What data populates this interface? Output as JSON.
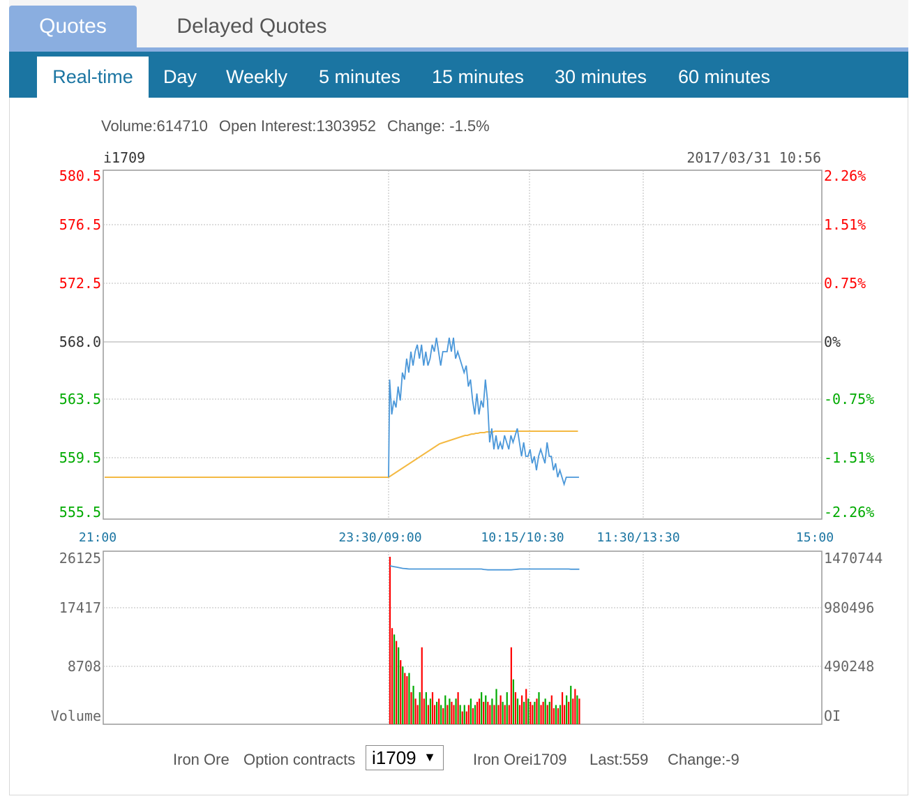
{
  "top_tabs": [
    {
      "label": "Quotes",
      "active": true
    },
    {
      "label": "Delayed Quotes",
      "active": false
    }
  ],
  "sub_tabs": [
    {
      "label": "Real-time",
      "active": true
    },
    {
      "label": "Day",
      "active": false
    },
    {
      "label": "Weekly",
      "active": false
    },
    {
      "label": "5 minutes",
      "active": false
    },
    {
      "label": "15 minutes",
      "active": false
    },
    {
      "label": "30 minutes",
      "active": false
    },
    {
      "label": "60 minutes",
      "active": false
    }
  ],
  "stats": {
    "volume": "Volume:614710",
    "open_interest": "Open Interest:1303952",
    "change": "Change: -1.5%"
  },
  "colors": {
    "up": "#ff0000",
    "down": "#00aa00",
    "neutral": "#333333",
    "price_line": "#4a97d9",
    "avg_line": "#f4b942",
    "time_label": "#1b75a2"
  },
  "chart_data": [
    {
      "type": "line",
      "symbol": "i1709",
      "timestamp": "2017/03/31 10:56",
      "y_left_ticks": [
        "580.5",
        "576.5",
        "572.5",
        "568.0",
        "563.5",
        "559.5",
        "555.5"
      ],
      "y_right_ticks": [
        "2.26%",
        "1.51%",
        "0.75%",
        "0%",
        "-0.75%",
        "-1.51%",
        "-2.26%"
      ],
      "ylim": [
        555.5,
        580.5
      ],
      "x_ticks": [
        "21:00",
        "23:30/09:00",
        "10:15/10:30",
        "11:30/13:30",
        "15:00"
      ],
      "series": [
        {
          "values": [
            565.5,
            563,
            564,
            563.5,
            565,
            564,
            566,
            565.5,
            567,
            566,
            567.5,
            566.5,
            567.5,
            568,
            567,
            568,
            566.5,
            567.5,
            566.5,
            567,
            568,
            567.5,
            568.5,
            567.5,
            566.5,
            567.5,
            567.5,
            567.5,
            568.5,
            567.5,
            568.5,
            567,
            567.5,
            567,
            566.5,
            566,
            566.5,
            565,
            565.5,
            564,
            563,
            564.5,
            563,
            564,
            563.5,
            565.5,
            564,
            561,
            562,
            560.5,
            561.5,
            560.5,
            561,
            560.5,
            561.5,
            561,
            560.5,
            561.5,
            561,
            561.5,
            562,
            561,
            560,
            561,
            560,
            560,
            560.5,
            559.5,
            560,
            559,
            560,
            560.5,
            560,
            559.5,
            561,
            560,
            560,
            559,
            559.5,
            558.5,
            559,
            558.5,
            558,
            558.5,
            558.5,
            558.5,
            558.5,
            558.5,
            558.5,
            558.5
          ]
        },
        {
          "values": [
            558.5,
            558.6,
            558.7,
            558.8,
            558.9,
            559,
            559.1,
            559.2,
            559.3,
            559.4,
            559.5,
            559.6,
            559.7,
            559.8,
            559.9,
            560,
            560.1,
            560.2,
            560.3,
            560.4,
            560.5,
            560.6,
            560.7,
            560.8,
            560.9,
            560.95,
            561,
            561.05,
            561.1,
            561.15,
            561.2,
            561.25,
            561.3,
            561.35,
            561.4,
            561.45,
            561.5,
            561.5,
            561.55,
            561.6,
            561.6,
            561.65,
            561.65,
            561.7,
            561.7,
            561.7,
            561.75,
            561.75,
            561.75,
            561.75,
            561.8,
            561.8,
            561.8,
            561.8,
            561.8,
            561.8,
            561.8,
            561.8,
            561.8,
            561.8,
            561.8,
            561.8,
            561.8,
            561.8,
            561.8,
            561.8,
            561.8,
            561.8,
            561.8,
            561.8,
            561.8,
            561.8,
            561.8,
            561.8,
            561.8,
            561.8,
            561.8,
            561.8,
            561.8,
            561.8,
            561.8,
            561.8,
            561.8,
            561.8,
            561.8,
            561.8,
            561.8,
            561.8,
            561.8,
            561.8
          ]
        }
      ]
    },
    {
      "type": "bar",
      "y_left_ticks": [
        "26125",
        "17417",
        "8708",
        "Volume"
      ],
      "y_right_ticks": [
        "1470744",
        "980496",
        "490248",
        "OI"
      ],
      "ylim": [
        0,
        26125
      ],
      "oi_ylim": [
        0,
        1470744
      ],
      "volume": [
        26125,
        15000,
        14000,
        13000,
        12000,
        10000,
        9000,
        8000,
        7500,
        8000,
        5000,
        6000,
        4000,
        3000,
        5000,
        12000,
        4000,
        5000,
        3000,
        4000,
        5000,
        3000,
        3500,
        4000,
        3000,
        2500,
        4500,
        3000,
        4000,
        3500,
        3000,
        4000,
        5000,
        3000,
        2000,
        3000,
        2000,
        3000,
        4000,
        2500,
        3000,
        3500,
        4000,
        5000,
        3500,
        4500,
        3500,
        3000,
        4000,
        3000,
        5500,
        3000,
        4500,
        3500,
        3000,
        5000,
        3000,
        12000,
        7000,
        5000,
        4000,
        3000,
        4500,
        3500,
        5500,
        4000,
        3500,
        3000,
        3500,
        4000,
        5000,
        3000,
        3500,
        4000,
        3000,
        3500,
        4500,
        2500,
        3000,
        2500,
        3000,
        5000,
        3000,
        4500,
        3500,
        6000,
        4000,
        5500,
        4500,
        4000
      ],
      "up": [
        true,
        true,
        false,
        true,
        false,
        true,
        false,
        true,
        true,
        false,
        true,
        false,
        true,
        true,
        false,
        true,
        true,
        false,
        true,
        false,
        true,
        true,
        false,
        true,
        false,
        true,
        false,
        true,
        false,
        true,
        true,
        false,
        true,
        false,
        true,
        false,
        true,
        true,
        false,
        true,
        false,
        true,
        true,
        false,
        true,
        false,
        true,
        true,
        false,
        true,
        false,
        true,
        true,
        false,
        true,
        false,
        true,
        true,
        false,
        true,
        false,
        true,
        true,
        false,
        true,
        false,
        true,
        true,
        false,
        true,
        false,
        true,
        true,
        false,
        true,
        false,
        true,
        true,
        false,
        true,
        false,
        true,
        true,
        false,
        true,
        false,
        true,
        true,
        false,
        true
      ],
      "open_interest": [
        1320000,
        1318000,
        1316000,
        1314000,
        1312000,
        1310000,
        1308000,
        1307000,
        1306000,
        1305000,
        1305000,
        1305000,
        1305000,
        1305000,
        1305000,
        1305000,
        1305000,
        1305000,
        1305000,
        1305000,
        1305000,
        1305000,
        1305000,
        1305000,
        1305000,
        1305000,
        1305000,
        1305000,
        1305000,
        1305000,
        1305000,
        1305000,
        1305000,
        1305000,
        1305000,
        1305000,
        1305000,
        1305000,
        1305000,
        1305000,
        1305000,
        1305000,
        1305000,
        1305000,
        1303000,
        1302000,
        1301000,
        1301000,
        1301000,
        1301000,
        1301000,
        1301000,
        1301000,
        1301000,
        1301000,
        1301000,
        1301000,
        1301000,
        1302000,
        1303000,
        1304000,
        1305000,
        1305000,
        1305000,
        1305000,
        1305000,
        1305000,
        1305000,
        1305000,
        1305000,
        1305000,
        1305000,
        1305000,
        1305000,
        1305000,
        1305000,
        1305000,
        1305000,
        1305000,
        1305000,
        1305000,
        1305000,
        1305000,
        1305000,
        1305000,
        1304000,
        1303952,
        1303952,
        1303952,
        1303952
      ]
    }
  ],
  "footer": {
    "category": "Iron Ore",
    "option_label": "Option contracts",
    "selected_contract": "i1709",
    "name": "Iron Orei1709",
    "last": "Last:559",
    "change": "Change:-9"
  }
}
